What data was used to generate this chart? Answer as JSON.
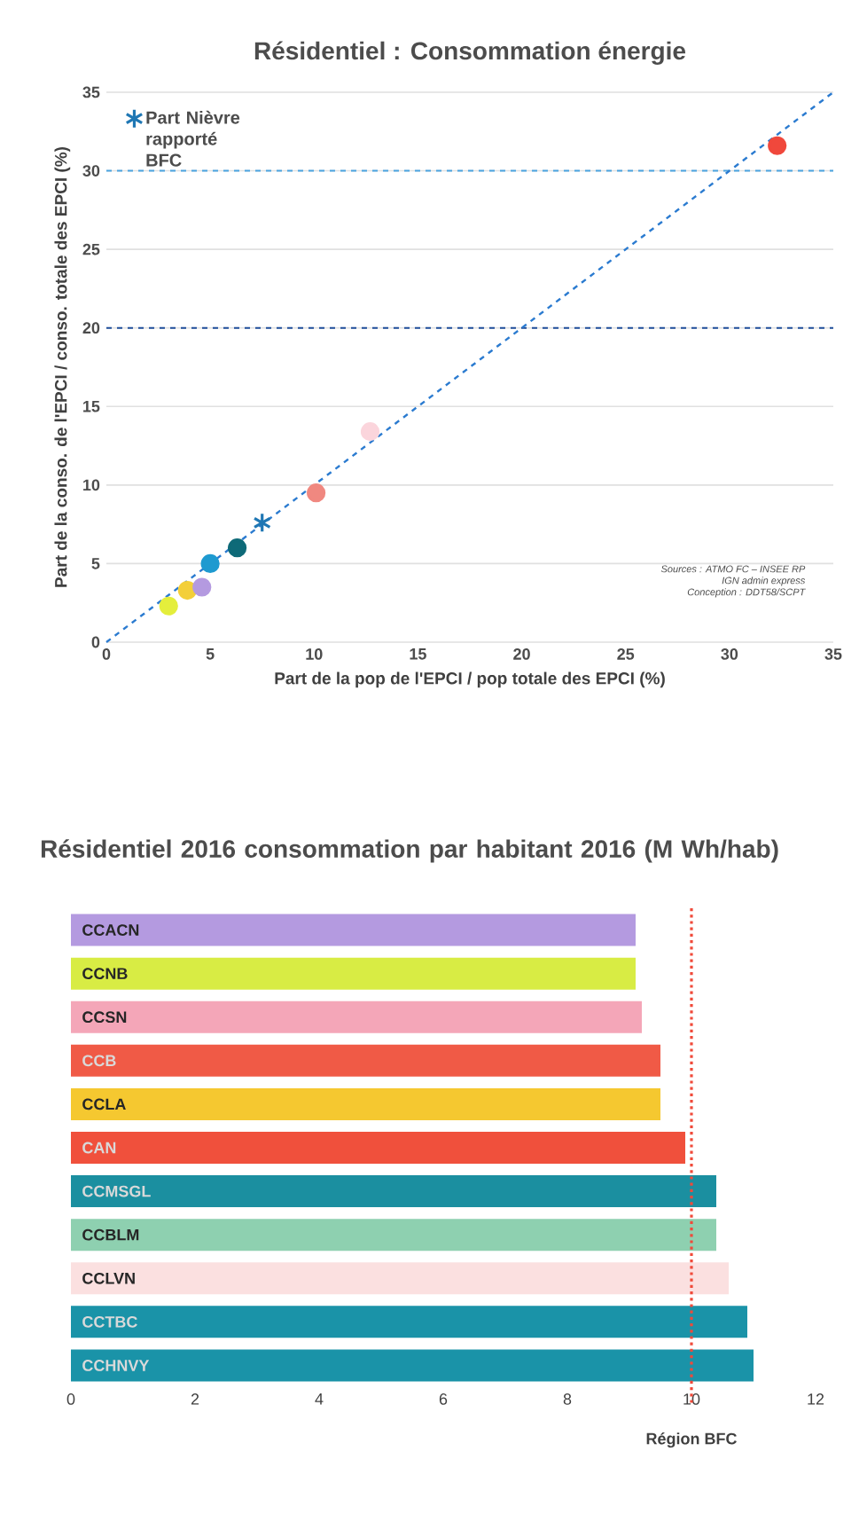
{
  "chart_data": [
    {
      "type": "scatter",
      "title": "Résidentiel : Consommation énergie",
      "xlabel": "Part de la pop de l'EPCI / pop totale des EPCI (%)",
      "ylabel": "Part de la conso. de l'EPCI / conso. totale des EPCI (%)",
      "xlim": [
        0,
        35
      ],
      "ylim": [
        0,
        35
      ],
      "xticks": [
        0,
        5,
        10,
        15,
        20,
        25,
        30,
        35
      ],
      "yticks": [
        0,
        5,
        10,
        15,
        20,
        25,
        30,
        35
      ],
      "grid": "y",
      "legend": "top left",
      "series": [
        {
          "x": [
            3.0,
            3.9,
            4.6,
            5.0,
            6.3,
            10.1,
            12.7,
            32.3
          ],
          "values": [
            2.3,
            3.3,
            3.5,
            5.0,
            6.0,
            9.5,
            13.4,
            31.6
          ],
          "marker": "circle",
          "colors": [
            "#e4ee3c",
            "#f3cf3a",
            "#b49ae0",
            "#1e9ad0",
            "#0e6a78",
            "#f08880",
            "#fbd5dc",
            "#f0483c"
          ]
        },
        {
          "name": "Part Nièvre rapporté BFC",
          "x": [
            7.5
          ],
          "values": [
            7.6
          ],
          "color": "#1f77b4",
          "marker": "cross"
        },
        {
          "type": "line",
          "x": [
            0,
            35
          ],
          "values": [
            0,
            35
          ],
          "color": "#2b7bd0",
          "line_style": "dashed",
          "marker": "none"
        }
      ],
      "ref_lines": [
        {
          "axis": "y",
          "value": 20,
          "color": "#1f4e9a",
          "line_style": "dashed"
        },
        {
          "axis": "y",
          "value": 30,
          "color": "#4aa3df",
          "line_style": "dashed"
        }
      ],
      "annotations": [
        "Sources : ATMO FC – INSEE RP",
        "IGN admin express",
        "Conception : DDT58/SCPT"
      ]
    },
    {
      "type": "bar",
      "orientation": "horizontal",
      "title": "Résidentiel 2016 consommation par habitant 2016 (M Wh/hab)",
      "categories": [
        "CCACN",
        "CCNB",
        "CCSN",
        "CCB",
        "CCLA",
        "CAN",
        "CCMSGL",
        "CCBLM",
        "CCLVN",
        "CCTBC",
        "CCHNVY"
      ],
      "values": [
        9.1,
        9.1,
        9.2,
        9.5,
        9.5,
        9.9,
        10.4,
        10.4,
        10.6,
        10.9,
        11.0
      ],
      "colors": [
        "#b49ae0",
        "#d8ec44",
        "#f4a6b8",
        "#f05a46",
        "#f5c830",
        "#f0503c",
        "#1b8fa0",
        "#8ed0b0",
        "#fbe0e0",
        "#1a93a8",
        "#1a93a8"
      ],
      "xlim": [
        0,
        12
      ],
      "xticks": [
        0,
        2,
        4,
        6,
        8,
        10,
        12
      ],
      "ref_lines": [
        {
          "axis": "x",
          "value": 10,
          "label": "Région BFC",
          "color": "#f04a3a",
          "line_style": "dotted"
        }
      ]
    }
  ]
}
